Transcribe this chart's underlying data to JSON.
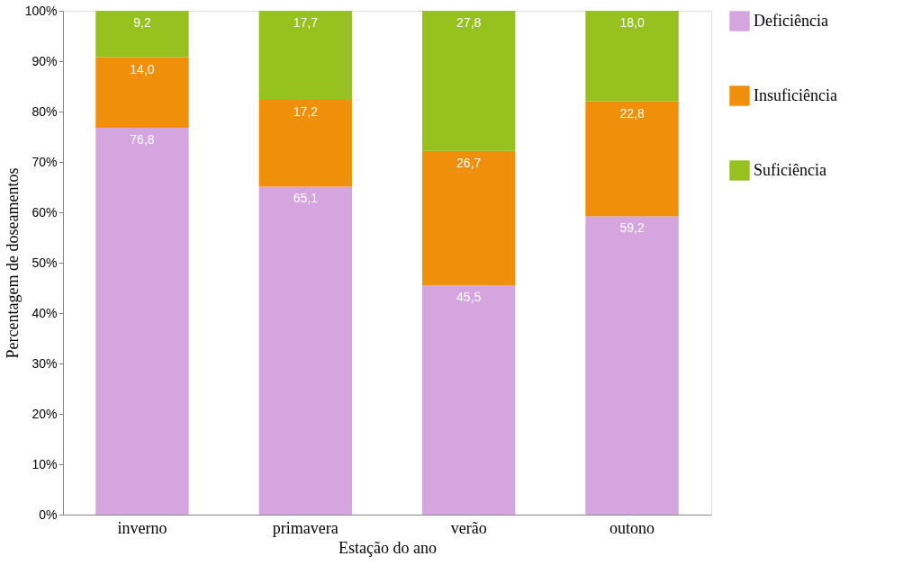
{
  "chart_data": {
    "type": "bar",
    "stacked": true,
    "xlabel": "Estação do ano",
    "ylabel": "Percentagem de doseamentos",
    "categories": [
      "inverno",
      "primavera",
      "verão",
      "outono"
    ],
    "series": [
      {
        "name": "Deficiência",
        "color": "#d4a5de",
        "values": [
          76.8,
          65.1,
          45.5,
          59.2
        ],
        "value_labels": [
          "76,8",
          "65,1",
          "45,5",
          "59,2"
        ]
      },
      {
        "name": "Insuficiência",
        "color": "#f0900a",
        "values": [
          14.0,
          17.2,
          26.7,
          22.8
        ],
        "value_labels": [
          "14,0",
          "17,2",
          "26,7",
          "22,8"
        ]
      },
      {
        "name": "Suficiência",
        "color": "#96c11f",
        "values": [
          9.2,
          17.7,
          27.8,
          18.0
        ],
        "value_labels": [
          "9,2",
          "17,7",
          "27,8",
          "18,0"
        ]
      }
    ],
    "ylim": [
      0,
      100
    ],
    "yticks": [
      {
        "value": 0,
        "label": "0%"
      },
      {
        "value": 10,
        "label": "10%"
      },
      {
        "value": 20,
        "label": "20%"
      },
      {
        "value": 30,
        "label": "30%"
      },
      {
        "value": 40,
        "label": "40%"
      },
      {
        "value": 50,
        "label": "50%"
      },
      {
        "value": 60,
        "label": "60%"
      },
      {
        "value": 70,
        "label": "70%"
      },
      {
        "value": 80,
        "label": "80%"
      },
      {
        "value": 90,
        "label": "90%"
      },
      {
        "value": 100,
        "label": "100%"
      }
    ],
    "grid": false,
    "legend": "right"
  }
}
